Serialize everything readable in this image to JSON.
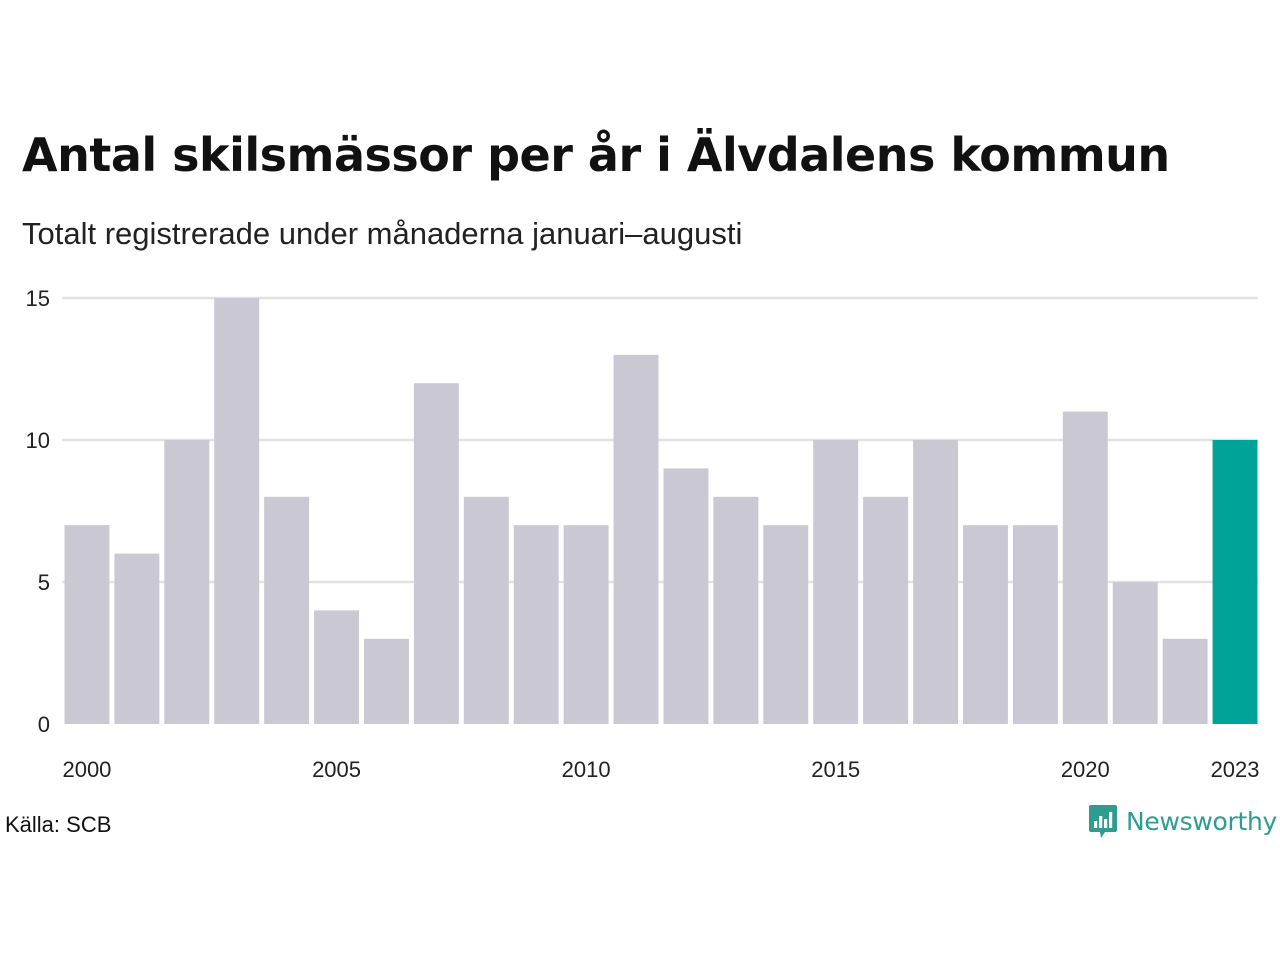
{
  "title": "Antal skilsmässor per år i Älvdalens kommun",
  "subtitle": "Totalt registrerade under månaderna januari–augusti",
  "source": "Källa: SCB",
  "brand": {
    "name": "Newsworthy",
    "icon": "newsworthy-logo-icon",
    "color": "#2e9c8f"
  },
  "colors": {
    "bar": "#c9c8d3",
    "highlight": "#00a398",
    "grid": "#e2e2e6"
  },
  "chart_data": {
    "type": "bar",
    "title": "Antal skilsmässor per år i Älvdalens kommun",
    "subtitle": "Totalt registrerade under månaderna januari–augusti",
    "categories": [
      2000,
      2001,
      2002,
      2003,
      2004,
      2005,
      2006,
      2007,
      2008,
      2009,
      2010,
      2011,
      2012,
      2013,
      2014,
      2015,
      2016,
      2017,
      2018,
      2019,
      2020,
      2021,
      2022,
      2023
    ],
    "values": [
      7,
      6,
      10,
      15,
      8,
      4,
      3,
      12,
      8,
      7,
      7,
      13,
      9,
      8,
      7,
      10,
      8,
      10,
      7,
      7,
      11,
      5,
      3,
      10
    ],
    "highlight": 2023,
    "ylim": [
      0,
      15
    ],
    "yticks": [
      0,
      5,
      10,
      15
    ],
    "xticks": [
      2000,
      2005,
      2010,
      2015,
      2020,
      2023
    ],
    "grid": true
  }
}
